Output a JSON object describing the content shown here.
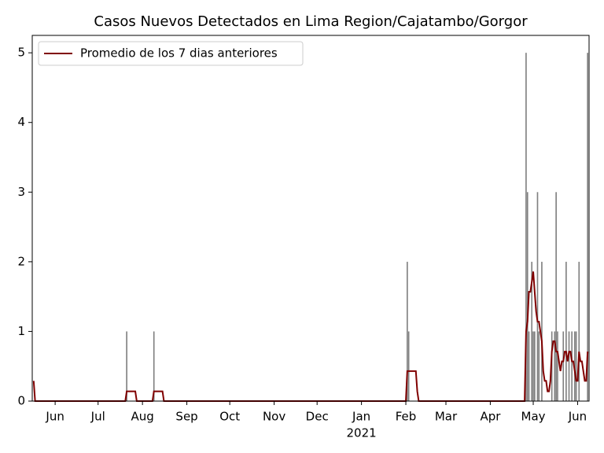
{
  "chart_data": {
    "type": "bar",
    "title": "Casos Nuevos Detectados en Lima Region/Cajatambo/Gorgor",
    "x_sublabel": "2021",
    "xlim": [
      -16,
      373
    ],
    "xticks": [
      {
        "value": 0,
        "label": "Jun"
      },
      {
        "value": 30,
        "label": "Jul"
      },
      {
        "value": 61,
        "label": "Aug"
      },
      {
        "value": 92,
        "label": "Sep"
      },
      {
        "value": 122,
        "label": "Oct"
      },
      {
        "value": 153,
        "label": "Nov"
      },
      {
        "value": 183,
        "label": "Dec"
      },
      {
        "value": 214,
        "label": "Jan"
      },
      {
        "value": 245,
        "label": "Feb"
      },
      {
        "value": 273,
        "label": "Mar"
      },
      {
        "value": 304,
        "label": "Apr"
      },
      {
        "value": 334,
        "label": "May"
      },
      {
        "value": 365,
        "label": "Jun"
      }
    ],
    "ylim": [
      0,
      5.25
    ],
    "yticks": [
      0,
      1,
      2,
      3,
      4,
      5
    ],
    "legend": "upper left",
    "series": [
      {
        "type": "bar",
        "color": "#808080",
        "x": [
          50,
          69,
          246,
          247,
          329,
          330,
          331,
          333,
          334,
          335,
          337,
          338,
          340,
          347,
          349,
          350,
          351,
          355,
          357,
          359,
          361,
          363,
          364,
          366,
          372
        ],
        "values": [
          1,
          1,
          2,
          1,
          5,
          3,
          1,
          2,
          1,
          1,
          3,
          1,
          2,
          1,
          1,
          3,
          1,
          1,
          2,
          1,
          1,
          1,
          1,
          2,
          5
        ]
      },
      {
        "type": "line",
        "name": "Promedio de los 7 dias anteriores",
        "color": "#800000",
        "x": [
          -15,
          -14,
          49,
          50,
          56,
          57,
          68,
          69,
          75,
          76,
          245,
          246,
          252,
          253,
          254,
          328,
          329,
          330,
          331,
          332,
          333,
          334,
          335,
          336,
          337,
          338,
          340,
          341,
          342,
          343,
          344,
          345,
          346,
          347,
          348,
          349,
          350,
          351,
          352,
          353,
          354,
          355,
          356,
          357,
          358,
          359,
          360,
          361,
          362,
          363,
          364,
          365,
          366,
          367,
          368,
          369,
          370,
          371,
          372
        ],
        "values": [
          0.29,
          0,
          0,
          0.14,
          0.14,
          0,
          0,
          0.14,
          0.14,
          0,
          0,
          0.43,
          0.43,
          0.14,
          0,
          0,
          1.0,
          1.14,
          1.57,
          1.57,
          1.71,
          1.86,
          1.57,
          1.29,
          1.14,
          1.14,
          0.86,
          0.43,
          0.29,
          0.29,
          0.14,
          0.14,
          0.29,
          0.71,
          0.86,
          0.86,
          0.71,
          0.71,
          0.57,
          0.43,
          0.57,
          0.57,
          0.71,
          0.71,
          0.57,
          0.71,
          0.71,
          0.57,
          0.57,
          0.43,
          0.29,
          0.29,
          0.71,
          0.57,
          0.57,
          0.43,
          0.29,
          0.29,
          0.71
        ]
      }
    ]
  }
}
